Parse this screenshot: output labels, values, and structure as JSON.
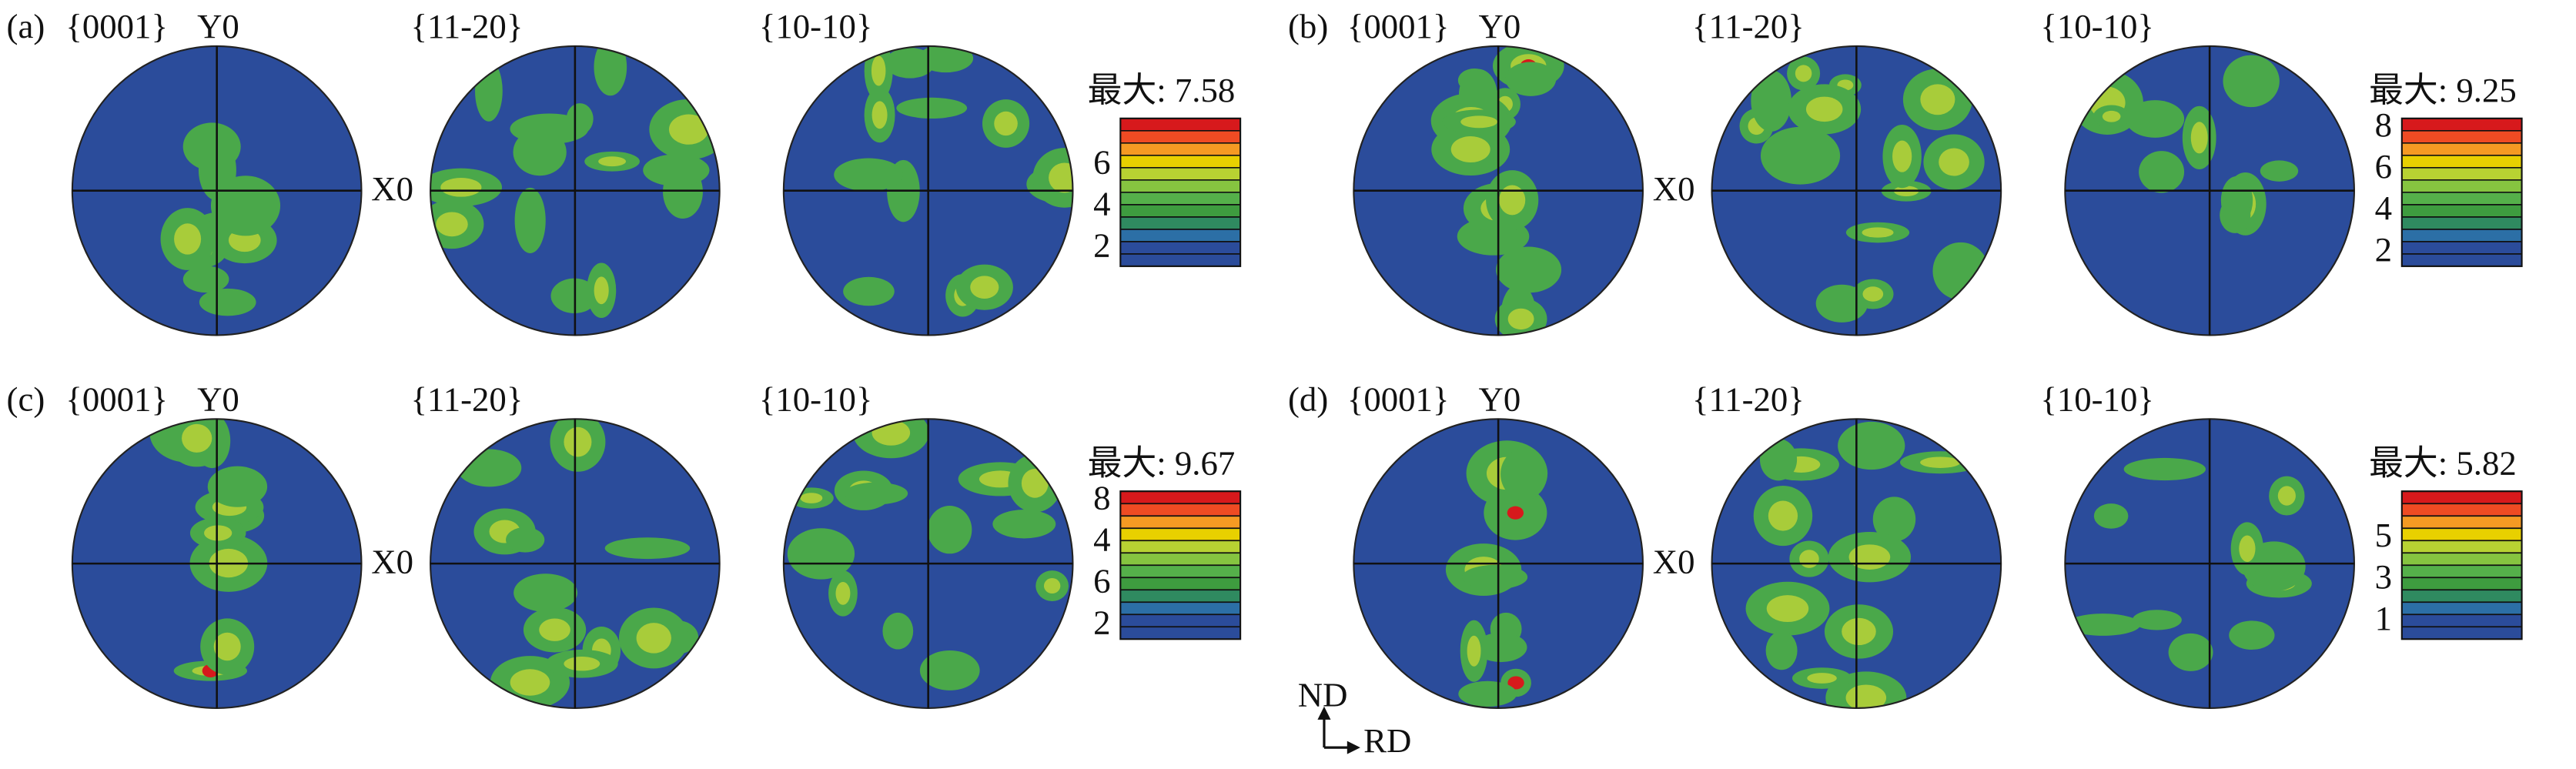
{
  "panels": [
    {
      "label": "(a)",
      "pole_figures": [
        "{0001}",
        "{11-20}",
        "{10-10}"
      ],
      "y_axis": "Y0",
      "x_axis": "X0",
      "max_label": "最大: 7.58",
      "scale_labels": [
        "6",
        "4",
        "2"
      ]
    },
    {
      "label": "(b)",
      "pole_figures": [
        "{0001}",
        "{11-20}",
        "{10-10}"
      ],
      "y_axis": "Y0",
      "x_axis": "X0",
      "max_label": "最大: 9.25",
      "scale_labels": [
        "8",
        "6",
        "4",
        "2"
      ]
    },
    {
      "label": "(c)",
      "pole_figures": [
        "{0001}",
        "{11-20}",
        "{10-10}"
      ],
      "y_axis": "Y0",
      "x_axis": "X0",
      "max_label": "最大: 9.67",
      "scale_labels": [
        "8",
        "4",
        "6",
        "2"
      ]
    },
    {
      "label": "(d)",
      "pole_figures": [
        "{0001}",
        "{11-20}",
        "{10-10}"
      ],
      "y_axis": "Y0",
      "x_axis": "X0",
      "max_label": "最大: 5.82",
      "scale_labels": [
        "5",
        "3",
        "1"
      ]
    }
  ],
  "orientation": {
    "vertical": "ND",
    "horizontal": "RD"
  }
}
